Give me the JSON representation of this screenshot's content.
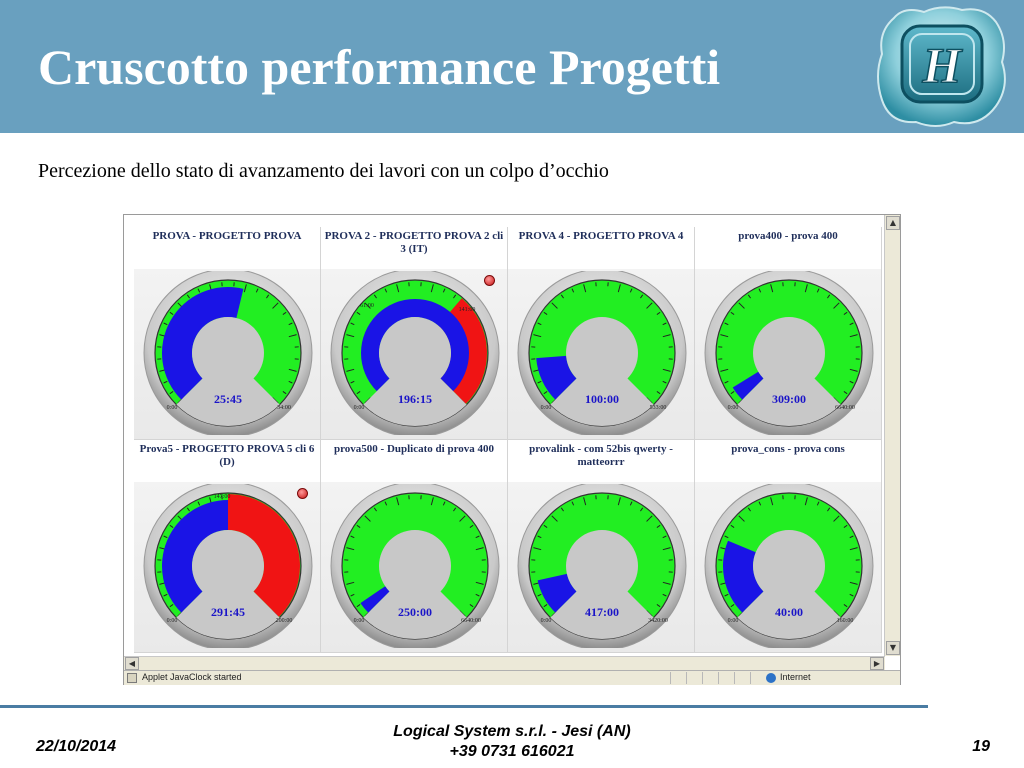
{
  "slide": {
    "title": "Cruscotto performance Progetti",
    "subtitle": "Percezione dello stato di avanzamento dei lavori con un colpo d’occhio",
    "logo_letter": "H"
  },
  "browser": {
    "status_text": "Applet JavaClock started",
    "zone": "Internet"
  },
  "colors": {
    "header": "#69a0bf",
    "gauge_green": "#22ee22",
    "gauge_blue": "#1a14e6",
    "gauge_red": "#f01414",
    "value_text": "#1a14c8",
    "title_text": "#1f2e5a"
  },
  "gauges": [
    {
      "title": "PROVA - PROGETTO PROVA",
      "value": "25:45",
      "min_label": "0:00",
      "max_label": "34:00",
      "progress": 0.55,
      "overrun": 0,
      "alert": false
    },
    {
      "title": "PROVA 2 - PROGETTO PROVA 2 cli 3 (IT)",
      "value": "196:15",
      "min_label": "0:00",
      "max_label": "",
      "start_mark": "61:00",
      "end_mark": "141:00",
      "progress": 1.0,
      "overrun": 0.35,
      "alert": true
    },
    {
      "title": "PROVA 4 - PROGETTO PROVA 4",
      "value": "100:00",
      "min_label": "0:00",
      "max_label": "533:00",
      "progress": 0.15,
      "overrun": 0,
      "alert": false
    },
    {
      "title": "prova400 - prova 400",
      "value": "309:00",
      "min_label": "0:00",
      "max_label": "6640:00",
      "progress": 0.05,
      "overrun": 0,
      "alert": false
    },
    {
      "title": "Prova5 - PROGETTO PROVA 5 cli 6 (D)",
      "value": "291:45",
      "min_label": "0:00",
      "max_label": "200:00",
      "start_mark": "147:00",
      "progress": 0.5,
      "overrun": 0.5,
      "alert": true
    },
    {
      "title": "prova500 - Duplicato di prova 400",
      "value": "250:00",
      "min_label": "0:00",
      "max_label": "6640:00",
      "progress": 0.04,
      "overrun": 0,
      "alert": false
    },
    {
      "title": "provalink - com 52bis qwerty - matteorrr",
      "value": "417:00",
      "min_label": "0:00",
      "max_label": "3420:00",
      "progress": 0.12,
      "overrun": 0,
      "alert": false
    },
    {
      "title": "prova_cons - prova cons",
      "value": "40:00",
      "min_label": "0:00",
      "max_label": "160:00",
      "progress": 0.25,
      "overrun": 0,
      "alert": false
    }
  ],
  "footer": {
    "date": "22/10/2014",
    "company": "Logical System s.r.l. - Jesi (AN)",
    "phone": "+39 0731 616021",
    "page": "19"
  }
}
